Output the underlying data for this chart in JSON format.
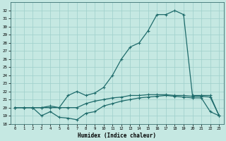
{
  "xlabel": "Humidex (Indice chaleur)",
  "xlim": [
    -0.5,
    23.5
  ],
  "ylim": [
    18,
    33
  ],
  "yticks": [
    18,
    19,
    20,
    21,
    22,
    23,
    24,
    25,
    26,
    27,
    28,
    29,
    30,
    31,
    32
  ],
  "xticks": [
    0,
    1,
    2,
    3,
    4,
    5,
    6,
    7,
    8,
    9,
    10,
    11,
    12,
    13,
    14,
    15,
    16,
    17,
    18,
    19,
    20,
    21,
    22,
    23
  ],
  "bg_color": "#c5e8e2",
  "grid_color": "#9ecfca",
  "line_color": "#1e6b6b",
  "line_width": 0.9,
  "marker": "+",
  "marker_size": 3.5,
  "line1_x": [
    0,
    1,
    2,
    3,
    4,
    5,
    6,
    7,
    8,
    9,
    10,
    11,
    12,
    13,
    14,
    15,
    16,
    17,
    18,
    19,
    20,
    21,
    22,
    23
  ],
  "line1_y": [
    20.0,
    20.0,
    20.0,
    19.0,
    19.5,
    18.8,
    18.7,
    18.5,
    19.3,
    19.5,
    20.2,
    20.5,
    20.8,
    21.0,
    21.2,
    21.3,
    21.4,
    21.5,
    21.4,
    21.3,
    21.2,
    21.2,
    19.5,
    19.0
  ],
  "line2_x": [
    0,
    1,
    2,
    3,
    4,
    5,
    6,
    7,
    8,
    9,
    10,
    11,
    12,
    13,
    14,
    15,
    16,
    17,
    18,
    19,
    20,
    21,
    22,
    23
  ],
  "line2_y": [
    20.0,
    20.0,
    20.0,
    20.0,
    20.2,
    20.0,
    20.0,
    20.0,
    20.5,
    20.8,
    21.0,
    21.2,
    21.3,
    21.5,
    21.5,
    21.6,
    21.6,
    21.6,
    21.5,
    21.5,
    21.4,
    21.4,
    21.3,
    19.0
  ],
  "line3_x": [
    0,
    1,
    2,
    3,
    4,
    5,
    6,
    7,
    8,
    9,
    10,
    11,
    12,
    13,
    14,
    15,
    16,
    17,
    18,
    19,
    20,
    21,
    22,
    23
  ],
  "line3_y": [
    20.0,
    20.0,
    20.0,
    20.0,
    20.0,
    20.0,
    21.5,
    22.0,
    21.5,
    21.8,
    22.5,
    24.0,
    26.0,
    27.5,
    28.0,
    29.5,
    31.5,
    31.5,
    32.0,
    31.5,
    21.5,
    21.5,
    21.5,
    19.0
  ]
}
